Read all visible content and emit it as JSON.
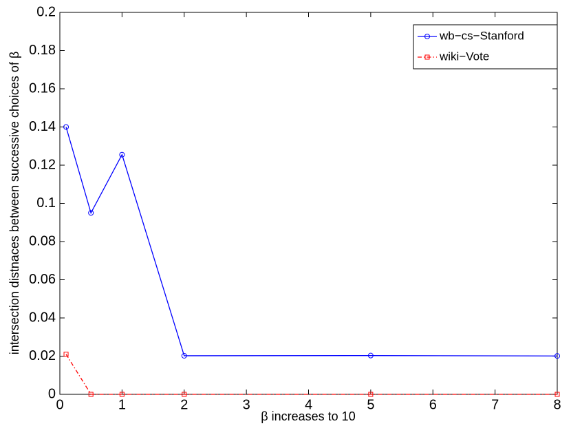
{
  "chart_data": {
    "type": "line",
    "x_label": "β  increases to 10",
    "y_label": "intersection distnaces between successive choices of β",
    "x": [
      0.1,
      0.5,
      1,
      2,
      5,
      8
    ],
    "series": [
      {
        "name": "wb−cs−Stanford",
        "color": "#0000ff",
        "line_style": "solid",
        "marker": "circle",
        "values": [
          0.14,
          0.095,
          0.1255,
          0.0202,
          0.0203,
          0.0201
        ]
      },
      {
        "name": "wiki−Vote",
        "color": "#ff0000",
        "line_style": "dashdot",
        "marker": "square",
        "values": [
          0.021,
          0,
          0,
          0,
          0,
          0
        ]
      }
    ],
    "xlim": [
      0,
      8
    ],
    "xticks": [
      0,
      1,
      2,
      3,
      4,
      5,
      6,
      7,
      8
    ],
    "ylim": [
      0,
      0.2
    ],
    "yticks": [
      0,
      0.02,
      0.04,
      0.06,
      0.08,
      0.1,
      0.12,
      0.14,
      0.16,
      0.18,
      0.2
    ],
    "grid": false,
    "legend": "upper right"
  }
}
